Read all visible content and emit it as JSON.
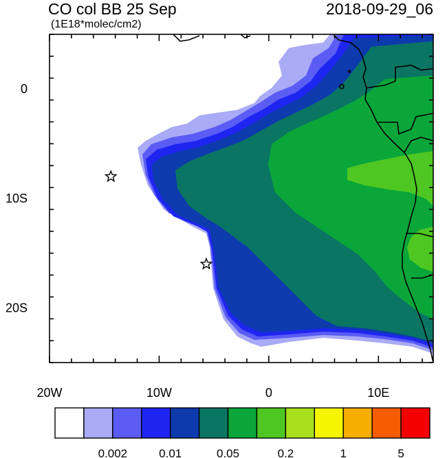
{
  "header": {
    "title": "CO col BB 25 Sep",
    "units": "(1E18*molec/cm2)",
    "datetime": "2018-09-29_06"
  },
  "map": {
    "lon_range": [
      -20,
      15
    ],
    "lat_range": [
      -25,
      5
    ],
    "x_ticks": [
      {
        "value": -20,
        "label": "20W"
      },
      {
        "value": -10,
        "label": "10W"
      },
      {
        "value": 0,
        "label": "0"
      },
      {
        "value": 10,
        "label": "10E"
      }
    ],
    "y_ticks": [
      {
        "value": 0,
        "label": "0"
      },
      {
        "value": -10,
        "label": "10S"
      },
      {
        "value": -20,
        "label": "20S"
      }
    ],
    "markers": [
      {
        "name": "star-marker",
        "lon": -14.4,
        "lat": -8.0
      },
      {
        "name": "star-marker",
        "lon": -5.7,
        "lat": -16.0
      }
    ],
    "region_colors": {
      "light": "#a9abf6",
      "medium": "#5a5cf4",
      "blue": "#1e25f0",
      "dark_blue": "#0d3aad",
      "teal": "#0a7563",
      "green": "#0aa63a",
      "light_green": "#4fc722",
      "land_boundary": "#000000"
    }
  },
  "colorbar": {
    "colors": [
      "#ffffff",
      "#a9abf6",
      "#5a5cf4",
      "#1e25f0",
      "#0d3aad",
      "#0a7563",
      "#0aa63a",
      "#4fc722",
      "#a8e01e",
      "#f5f500",
      "#f8ae00",
      "#f65c00",
      "#f40000"
    ],
    "labels": [
      "0.002",
      "0.01",
      "0.05",
      "0.2",
      "1",
      "5"
    ],
    "label_after_box": [
      1,
      3,
      5,
      7,
      9,
      11
    ]
  }
}
